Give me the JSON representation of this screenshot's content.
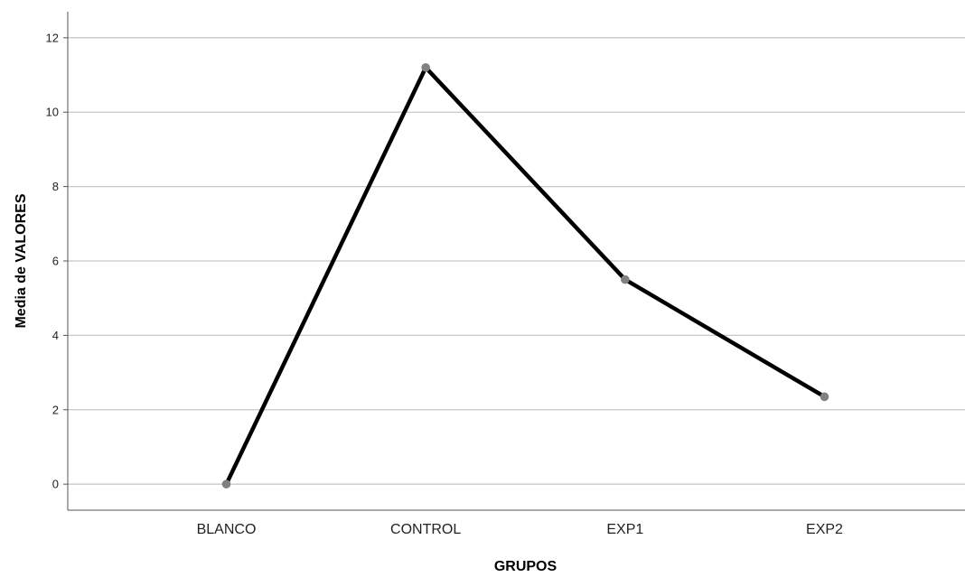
{
  "chart_data": {
    "type": "line",
    "categories": [
      "BLANCO",
      "CONTROL",
      "EXP1",
      "EXP2"
    ],
    "series": [
      {
        "values": [
          0.0,
          11.2,
          5.5,
          2.35
        ]
      }
    ],
    "xlabel": "GRUPOS",
    "ylabel": "Media de VALORES",
    "ylim": [
      -0.7,
      12.7
    ],
    "yticks": [
      0,
      2,
      4,
      6,
      8,
      10,
      12
    ],
    "grid": true,
    "colors": {
      "line": "#000000",
      "marker": "#808080",
      "grid": "#c8c8c8",
      "axis": "#555555"
    }
  }
}
